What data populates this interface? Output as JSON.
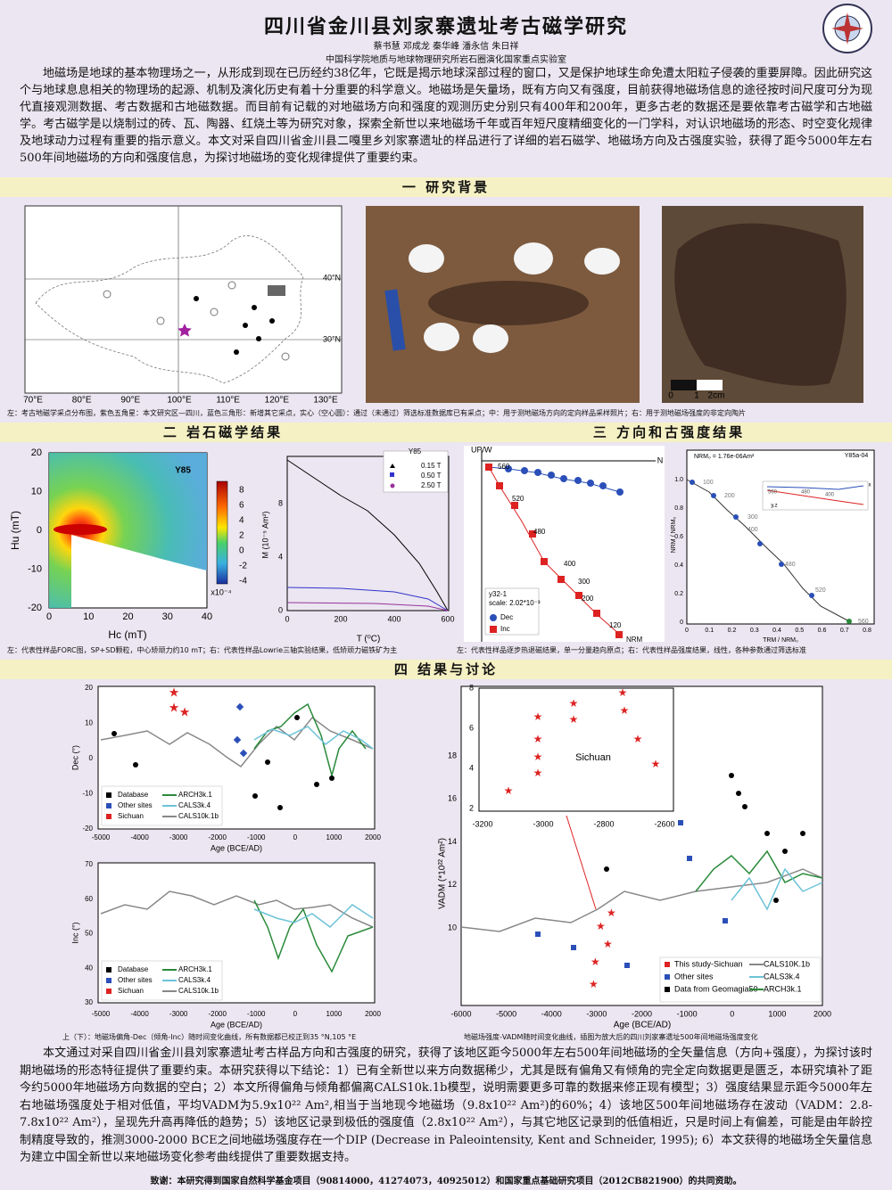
{
  "title": "四川省金川县刘家寨遗址考古磁学研究",
  "authors": "蔡书慧 邓成龙 秦华峰 潘永信 朱日祥",
  "affiliation": "中国科学院地质与地球物理研究所岩石圈演化国家重点实验室",
  "intro": "地磁场是地球的基本物理场之一，从形成到现在已历经约38亿年，它既是揭示地球深部过程的窗口，又是保护地球生命免遭太阳粒子侵袭的重要屏障。因此研究这个与地球息息相关的物理场的起源、机制及演化历史有着十分重要的科学意义。地磁场是矢量场，既有方向又有强度，目前获得地磁场信息的途径按时间尺度可分为现代直接观测数据、考古数据和古地磁数据。而目前有记载的对地磁场方向和强度的观测历史分别只有400年和200年，更多古老的数据还是要依靠考古磁学和古地磁学。考古磁学是以烧制过的砖、瓦、陶器、红烧土等为研究对象，探索全新世以来地磁场千年或百年短尺度精细变化的一门学科，对认识地磁场的形态、时空变化规律及地球动力过程有重要的指示意义。本文对采自四川省金川县二嘎里乡刘家寨遗址的样品进行了详细的岩石磁学、地磁场方向及古强度实验，获得了距今5000年左右500年间地磁场的方向和强度信息，为探讨地磁场的变化规律提供了重要约束。",
  "sections": [
    "一 研究背景",
    "二 岩石磁学结果",
    "三 方向和古强度结果",
    "四 结果与讨论"
  ],
  "captions": [
    "左：考古地磁学采点分布图，紫色五角星：本文研究区—四川，蓝色三角形：新增其它采点，实心（空心圆）：通过（未通过）筛选标准数据库已有采点；中：用于测地磁场方向的定向样品采样照片；右：用于测地磁场强度的非定向陶片",
    "左：代表性样品FORC图，SP+SD颗粒，中心矫顽力约10 mT；右：代表性样品Lowrie三轴实验结果，低矫顽力磁铁矿为主",
    "左：代表性样品逐步热退磁结果，单一分量趋向原点；右：代表性样品强度结果，线性，各种参数通过筛选标准",
    "上（下）：地磁场偏角-Dec（倾角-Inc）随时间变化曲线，所有数据都已校正到35 °N,105 °E",
    "地磁场强度-VADM随时间变化曲线，插图为放大后的四川刘家寨遗址500年间地磁场强度变化"
  ],
  "conclusion": "本文通过对采自四川省金川县刘家寨遗址考古样品方向和古强度的研究，获得了该地区距今5000年左右500年间地磁场的全矢量信息（方向+强度），为探讨该时期地磁场的形态特征提供了重要约束。本研究获得以下结论：1）已有全新世以来方向数据稀少，尤其是既有偏角又有倾角的完全定向数据更是匮乏，本研究填补了距今约5000年地磁场方向数据的空白；2）本文所得偏角与倾角都偏离CALS10k.1b模型，说明需要更多可靠的数据来修正现有模型；3）强度结果显示距今5000年左右地磁场强度处于相对低值，平均VADM为5.9x10²² Am²,相当于当地现今地磁场（9.8x10²² Am²)的60%；4）该地区500年间地磁场存在波动（VADM：2.8-7.8x10²² Am²），呈现先升高再降低的趋势；5）该地区记录到极低的强度值（2.8x10²² Am²），与其它地区记录到的低值相近，只是时间上有偏差，可能是由年龄控制精度导致的，推测3000-2000 BCE之间地磁场强度存在一个DIP (Decrease in Paleointensity, Kent and Schneider, 1995); 6）本文获得的地磁场全矢量信息为建立中国全新世以来地磁场变化参考曲线提供了重要数据支持。",
  "funding": "致谢：本研究得到国家自然科学基金项目（90814000，41274073，40925012）和国家重点基础研究项目（2012CB821900）的共同资助。",
  "figures": {
    "map": {
      "xticks": [
        "70°E",
        "80°E",
        "90°E",
        "100°E",
        "110°E",
        "120°E",
        "130°E"
      ],
      "yticks": [
        "40°N",
        "30°N"
      ]
    },
    "sherd": {
      "scale": [
        "0",
        "1",
        "2cm"
      ]
    },
    "forc": {
      "label": "Y85",
      "xlabel": "Hc (mT)",
      "ylabel": "Hu (mT)",
      "xticks": [
        "0",
        "10",
        "20",
        "30",
        "40"
      ],
      "yticks": [
        "20",
        "10",
        "0",
        "-10",
        "-20"
      ],
      "cbar_ticks": [
        "8",
        "6",
        "4",
        "2",
        "0",
        "-2",
        "-4"
      ],
      "cbar_unit": "x10⁻⁴"
    },
    "lowrie": {
      "title": "Y85",
      "legend": [
        "0.15 T",
        "0.50 T",
        "2.50 T"
      ],
      "xlabel": "T (⁰C)",
      "ylabel": "M (10⁻⁵ Am²)",
      "xticks": [
        "0",
        "200",
        "400",
        "600"
      ],
      "yticks": [
        "8",
        "4",
        "0"
      ]
    },
    "zij": {
      "up": "UP/W",
      "n": "N",
      "steps": [
        "560",
        "520",
        "480",
        "400",
        "300",
        "200",
        "120",
        "NRM"
      ],
      "sample": "y32-1",
      "scale": "scale: 2.02*10⁻³",
      "legend": [
        "Dec",
        "Inc"
      ]
    },
    "arai": {
      "title": "Y85a-04",
      "formula": "NRM₀ = 1.76e-06Am²",
      "xlabel": "TRM / NRM₀",
      "ylabel": "NRM / NRM₀",
      "xticks": [
        "0",
        "0.1",
        "0.2",
        "0.3",
        "0.4",
        "0.5",
        "0.6",
        "0.7",
        "0.8"
      ],
      "yticks": [
        "1.0",
        "0.8",
        "0.6",
        "0.4",
        "0.2",
        "0"
      ],
      "steps": [
        "100",
        "200",
        "300",
        "400",
        "480",
        "520",
        "560"
      ],
      "inset": [
        "560",
        "480",
        "400",
        "x",
        "y,z"
      ]
    },
    "dec": {
      "ylabel": "Dec (°)",
      "xlabel": "Age (BCE/AD)",
      "xticks": [
        "-5000",
        "-4000",
        "-3000",
        "-2000",
        "-1000",
        "0",
        "1000",
        "2000"
      ],
      "yticks": [
        "20",
        "10",
        "0",
        "-10",
        "-20"
      ],
      "legend": [
        "Database",
        "Other sites",
        "Sichuan",
        "ARCH3k.1",
        "CALS3k.4",
        "CALS10k.1b"
      ]
    },
    "inc": {
      "ylabel": "Inc (°)",
      "xlabel": "Age (BCE/AD)",
      "xticks": [
        "-5000",
        "-4000",
        "-3000",
        "-2000",
        "-1000",
        "0",
        "1000",
        "2000"
      ],
      "yticks": [
        "70",
        "60",
        "50",
        "40",
        "30"
      ],
      "legend": [
        "Database",
        "Other sites",
        "Sichuan",
        "ARCH3k.1",
        "CALS3k.4",
        "CALS10k.1b"
      ]
    },
    "vadm": {
      "ylabel": "VADM (*10²² Am²)",
      "xlabel": "Age (BCE/AD)",
      "xticks": [
        "-6000",
        "-5000",
        "-4000",
        "-3000",
        "-2000",
        "-1000",
        "0",
        "1000",
        "2000"
      ],
      "yticks": [
        "18",
        "16",
        "14",
        "12",
        "10"
      ],
      "legend": [
        "This study-Sichuan",
        "Other sites",
        "Data from Geomagia50",
        "CALS10K.1b",
        "CALS3k.4",
        "ARCH3k.1"
      ],
      "inset": {
        "label": "Sichuan",
        "xticks": [
          "-3200",
          "-3000",
          "-2800",
          "-2600"
        ],
        "yticks": [
          "8",
          "6",
          "4",
          "2"
        ]
      }
    }
  }
}
